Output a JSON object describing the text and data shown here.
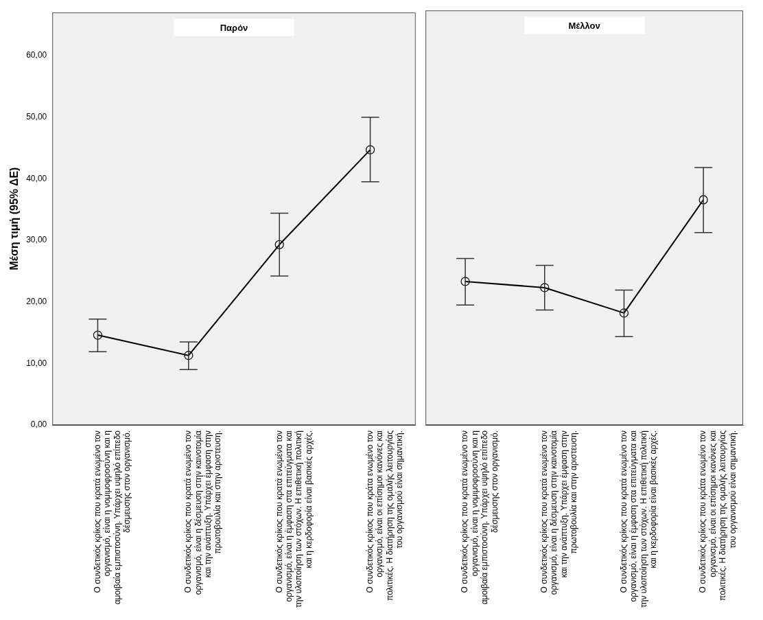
{
  "chart_data": [
    {
      "type": "line",
      "title": "Παρόν",
      "ylabel": "Μέση τιμή (95% ΔΕ)",
      "color": "#000000",
      "marker": "circle",
      "categories": [
        "Ο συνδετικός κρίκος που κρατά ενωμένο τον οργανισμό, είναι η νομιμοφροσύνη και η αμοιβαία εμπιστοσύνη. Υπάρχει υψηλό επίπεδο δέσμευσης στον οργανισμό.",
        "Ο συνδετικός κρίκος που κρατά ενωμένο τον οργανισμό, είναι η δέσμευση στην καινοτομία και την ανάπτυξη. Υπάρχει έμφαση στην πρωτοβουλία και στην αριστευση.",
        "Ο συνδετικός κρίκος που κρατά ενωμένο τον οργανισμό, είναι η έμφαση στα επιτεύγματα και την υλοποίηση των στόχων. Η επιθετική πολιτική και η κερδοφορία είναι βασικές αρχές.",
        "Ο συνδετικός κρίκος που κράτα ενωμένο τον οργανισμό, είναι οι επίσημοι κανόνες και πολιτικές. Η διατήρηση της ομαλής λειτουργίας του οργανισμού είναι σημαντική."
      ],
      "values": [
        14.6,
        11.3,
        29.3,
        44.7
      ],
      "errors": [
        [
          11.9,
          17.2
        ],
        [
          9.0,
          13.5
        ],
        [
          24.2,
          34.4
        ],
        [
          39.5,
          50.0
        ]
      ],
      "ylim": [
        0,
        67
      ],
      "yticks": [
        {
          "value": 0,
          "label": "0,00"
        },
        {
          "value": 10,
          "label": "10,00"
        },
        {
          "value": 20,
          "label": "20,00"
        },
        {
          "value": 30,
          "label": "30,00"
        },
        {
          "value": 40,
          "label": "40,00"
        },
        {
          "value": 50,
          "label": "50,00"
        },
        {
          "value": 60,
          "label": "60,00"
        }
      ]
    },
    {
      "type": "line",
      "title": "Μέλλον",
      "color": "#000000",
      "marker": "circle",
      "tick_labels": "x",
      "categories": [
        "Ο συνδετικός κρίκος που κρατά ενωμένο τον οργανισμό, είναι η νομιμοφροσύνη και η αμοιβαία εμπιστοσύνη. Υπάρχει υψηλό επίπεδο δέσμευσης στον οργανισμό.",
        "Ο συνδετικός κρίκος που κρατά ενωμένο τον οργανισμό, είναι η δέσμευση στην καινοτομία και την ανάπτυξη. Υπάρχει έμφαση στην πρωτοβουλία και στην αριστευση.",
        "Ο συνδετικός κρίκος που κρατά ενωμένο τον οργανισμό, είναι η έμφαση στα επιτεύγματα και την υλοποίηση των στόχων. Η επιθετική πολιτική και η κερδοφορία είναι βασικές αρχές.",
        "Ο συνδετικός κρίκος που κράτα ενωμένο τον οργανισμό, είναι οι επίσημοι κανόνες και πολιτικές. Η διατήρηση της ομαλής λειτουργίας του οργανισμού είναι σημαντική."
      ],
      "values": [
        23.2,
        22.2,
        18.1,
        36.4
      ],
      "errors": [
        [
          19.4,
          26.9
        ],
        [
          18.6,
          25.8
        ],
        [
          14.3,
          21.8
        ],
        [
          31.1,
          41.6
        ]
      ],
      "ylim": [
        0,
        67
      ]
    }
  ]
}
